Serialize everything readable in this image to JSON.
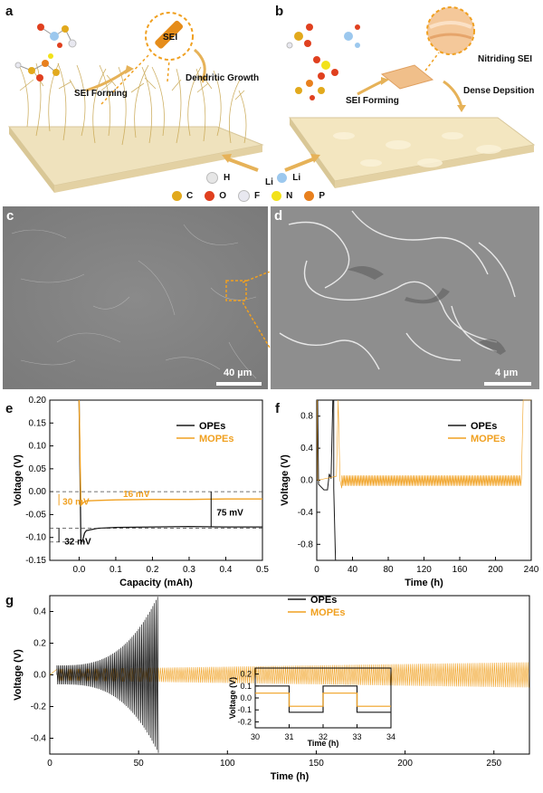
{
  "panels": {
    "a": {
      "letter": "a",
      "sei_label": "SEI",
      "sei_forming": "SEI Forming",
      "dendritic": "Dendritic Growth"
    },
    "b": {
      "letter": "b",
      "sei_label": "Nitriding SEI",
      "sei_forming": "SEI Forming",
      "dense": "Dense Depsition"
    },
    "c": {
      "letter": "c",
      "scale": "40 µm"
    },
    "d": {
      "letter": "d",
      "scale": "4 µm"
    },
    "e": {
      "letter": "e"
    },
    "f": {
      "letter": "f"
    },
    "g": {
      "letter": "g"
    }
  },
  "legend_atoms": {
    "li_center": "Li",
    "row1": [
      {
        "sym": "H",
        "color": "#e6e6e6"
      },
      {
        "sym": "Li",
        "color": "#9cc8ee"
      }
    ],
    "row2": [
      {
        "sym": "C",
        "color": "#e2a91c"
      },
      {
        "sym": "O",
        "color": "#e0401f"
      },
      {
        "sym": "F",
        "color": "#e8e8f0"
      },
      {
        "sym": "N",
        "color": "#f2e21a"
      },
      {
        "sym": "P",
        "color": "#e8801e"
      }
    ]
  },
  "colors": {
    "opes": "#1a1a1a",
    "mopes": "#f0a020",
    "sem_gray": "#8a8a8a",
    "platform": "#efe2bd"
  },
  "chart_data": [
    {
      "id": "e",
      "type": "line",
      "xlabel": "Capacity (mAh)",
      "ylabel": "Voltage (V)",
      "xlim": [
        -0.08,
        0.5
      ],
      "ylim": [
        -0.15,
        0.2
      ],
      "xticks": [
        "0.0",
        "0.1",
        "0.2",
        "0.3",
        "0.4",
        "0.5"
      ],
      "yticks": [
        "0.20",
        "0.15",
        "0.10",
        "0.05",
        "0.00",
        "-0.05",
        "-0.10",
        "-0.15"
      ],
      "series": [
        {
          "name": "OPEs",
          "color": "#1a1a1a",
          "x": [
            0,
            0.005,
            0.01,
            0.015,
            0.02,
            0.05,
            0.1,
            0.2,
            0.3,
            0.4,
            0.5
          ],
          "y": [
            0.2,
            -0.11,
            -0.105,
            -0.09,
            -0.085,
            -0.08,
            -0.078,
            -0.077,
            -0.076,
            -0.077,
            -0.077
          ]
        },
        {
          "name": "MOPEs",
          "color": "#f0a020",
          "x": [
            0,
            0.005,
            0.01,
            0.015,
            0.02,
            0.05,
            0.1,
            0.2,
            0.3,
            0.4,
            0.5
          ],
          "y": [
            0.2,
            -0.03,
            -0.025,
            -0.022,
            -0.02,
            -0.019,
            -0.018,
            -0.017,
            -0.017,
            -0.016,
            -0.016
          ]
        }
      ],
      "annotations": [
        "16 mV",
        "30 mV",
        "75 mV",
        "32 mV"
      ]
    },
    {
      "id": "f",
      "type": "line",
      "xlabel": "Time (h)",
      "ylabel": "Voltage (V)",
      "xlim": [
        0,
        240
      ],
      "ylim": [
        -1.0,
        1.0
      ],
      "xticks": [
        "0",
        "40",
        "80",
        "120",
        "160",
        "200",
        "240"
      ],
      "yticks": [
        "0.8",
        "0.4",
        "0.0",
        "-0.4",
        "-0.8"
      ],
      "series": [
        {
          "name": "OPEs",
          "color": "#1a1a1a"
        },
        {
          "name": "MOPEs",
          "color": "#f0a020"
        }
      ]
    },
    {
      "id": "g",
      "type": "line",
      "xlabel": "Time (h)",
      "ylabel": "Voltage (V)",
      "xlim": [
        0,
        270
      ],
      "ylim": [
        -0.5,
        0.5
      ],
      "xticks": [
        "0",
        "50",
        "100",
        "150",
        "200",
        "250"
      ],
      "yticks": [
        "0.4",
        "0.2",
        "0.0",
        "-0.2",
        "-0.4"
      ],
      "series": [
        {
          "name": "OPEs",
          "color": "#1a1a1a"
        },
        {
          "name": "MOPEs",
          "color": "#f0a020"
        }
      ],
      "inset": {
        "xlabel": "Time (h)",
        "ylabel": "Voltage (V)",
        "xlim": [
          30,
          34
        ],
        "ylim": [
          -0.25,
          0.25
        ],
        "xticks": [
          "30",
          "31",
          "32",
          "33",
          "34"
        ],
        "yticks": [
          "0.2",
          "0.1",
          "0.0",
          "-0.1",
          "-0.2"
        ]
      }
    }
  ]
}
